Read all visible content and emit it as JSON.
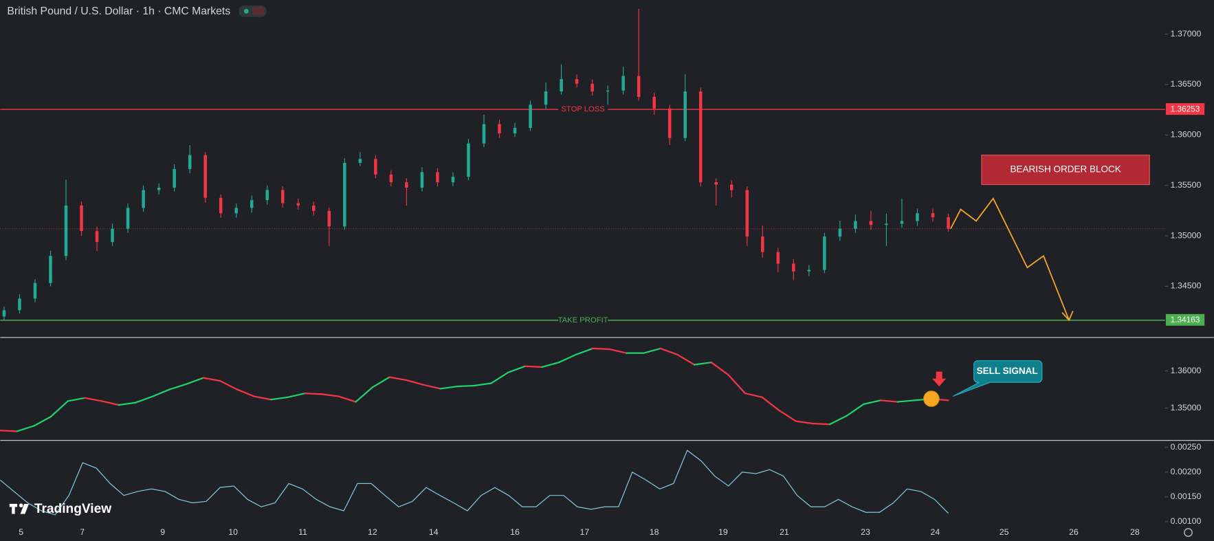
{
  "header": {
    "title": "British Pound / U.S. Dollar · 1h · CMC Markets"
  },
  "branding": "TradingView",
  "chart_data": [
    {
      "type": "candlestick",
      "x_labels": [
        "5",
        "7",
        "9",
        "10",
        "11",
        "12",
        "14",
        "16",
        "17",
        "18",
        "19",
        "21",
        "23",
        "24",
        "25",
        "26",
        "28"
      ],
      "open": [
        1.342,
        1.34262,
        1.34378,
        1.34532,
        1.34801,
        1.35301,
        1.35047,
        1.34939,
        1.3507,
        1.35277,
        1.35454,
        1.35477,
        1.35662,
        1.358,
        1.35377,
        1.35224,
        1.35277,
        1.35354,
        1.35454,
        1.35324,
        1.35301,
        1.35247,
        1.35093,
        1.35723,
        1.35762,
        1.35608,
        1.35531,
        1.35477,
        1.35631,
        1.35531,
        1.35585,
        1.35916,
        1.36108,
        1.36016,
        1.3607,
        1.363,
        1.36431,
        1.36554,
        1.36508,
        1.36431,
        1.3644,
        1.36585,
        1.36377,
        1.36262,
        1.3597,
        1.36431,
        1.35531,
        1.35508,
        1.35454,
        1.34993,
        1.34839,
        1.34724,
        1.34647,
        1.34662,
        1.34993,
        1.3507,
        1.35147,
        1.35108,
        1.3512,
        1.35147,
        1.35224,
        1.35185
      ],
      "high": [
        1.343,
        1.3442,
        1.3457,
        1.3485,
        1.3556,
        1.3534,
        1.3509,
        1.3512,
        1.3532,
        1.355,
        1.3552,
        1.3571,
        1.359,
        1.3583,
        1.3541,
        1.3532,
        1.354,
        1.355,
        1.3549,
        1.3537,
        1.3534,
        1.3528,
        1.3577,
        1.3583,
        1.358,
        1.3565,
        1.3557,
        1.3568,
        1.3567,
        1.3563,
        1.3596,
        1.362,
        1.3615,
        1.3612,
        1.3634,
        1.3652,
        1.367,
        1.366,
        1.3655,
        1.3649,
        1.3668,
        1.3725,
        1.3642,
        1.363,
        1.366,
        1.3647,
        1.3557,
        1.3555,
        1.3549,
        1.351,
        1.3488,
        1.3477,
        1.3471,
        1.3503,
        1.3515,
        1.3521,
        1.3525,
        1.3522,
        1.3537,
        1.3527,
        1.3527,
        1.3522
      ],
      "low": [
        1.3416,
        1.3423,
        1.3434,
        1.345,
        1.3476,
        1.35,
        1.3485,
        1.349,
        1.3503,
        1.3524,
        1.3541,
        1.3544,
        1.3562,
        1.3533,
        1.3518,
        1.3518,
        1.3523,
        1.3531,
        1.3528,
        1.3526,
        1.352,
        1.349,
        1.3506,
        1.3569,
        1.3557,
        1.3549,
        1.353,
        1.3544,
        1.3549,
        1.3549,
        1.3555,
        1.3588,
        1.3597,
        1.3598,
        1.3604,
        1.3626,
        1.364,
        1.3647,
        1.3639,
        1.363,
        1.364,
        1.3634,
        1.362,
        1.359,
        1.3594,
        1.3549,
        1.353,
        1.3538,
        1.349,
        1.3478,
        1.3464,
        1.3456,
        1.346,
        1.3463,
        1.3495,
        1.3503,
        1.3506,
        1.349,
        1.3508,
        1.351,
        1.3514,
        1.3504
      ],
      "close": [
        1.34262,
        1.34378,
        1.34532,
        1.34801,
        1.35301,
        1.35047,
        1.34939,
        1.3507,
        1.35277,
        1.35454,
        1.35477,
        1.35662,
        1.358,
        1.35377,
        1.35224,
        1.35277,
        1.35354,
        1.35454,
        1.35324,
        1.35301,
        1.35247,
        1.35093,
        1.35723,
        1.35762,
        1.35608,
        1.35531,
        1.35477,
        1.35631,
        1.35531,
        1.35585,
        1.35916,
        1.36108,
        1.36016,
        1.3607,
        1.363,
        1.36431,
        1.36554,
        1.36508,
        1.36431,
        1.3644,
        1.36585,
        1.36377,
        1.36262,
        1.3597,
        1.36431,
        1.35531,
        1.35508,
        1.35454,
        1.34993,
        1.34839,
        1.34724,
        1.34647,
        1.34662,
        1.34993,
        1.3507,
        1.35147,
        1.35108,
        1.3512,
        1.35147,
        1.35224,
        1.35185,
        1.3507
      ],
      "up_color": "#22ab94",
      "down_color": "#f23645",
      "ylim": [
        1.34,
        1.37338
      ],
      "yticks": [
        {
          "value": 1.345,
          "label": "1.34500"
        },
        {
          "value": 1.35,
          "label": "1.35000"
        },
        {
          "value": 1.355,
          "label": "1.35500"
        },
        {
          "value": 1.36,
          "label": "1.36000"
        },
        {
          "value": 1.365,
          "label": "1.36500"
        },
        {
          "value": 1.37,
          "label": "1.37000"
        }
      ],
      "levels": [
        {
          "name": "STOP LOSS",
          "value": 1.36253,
          "color": "#f23645"
        },
        {
          "name": "TAKE PROFIT",
          "value": 1.34163,
          "color": "#4caf50"
        }
      ],
      "zone": {
        "label": "BEARISH ORDER BLOCK",
        "top": 1.358,
        "bottom": 1.35508,
        "color": "#b22833"
      },
      "projection": {
        "values": [
          1.3507,
          1.35262,
          1.35147,
          1.3537,
          1.34685,
          1.34801,
          1.34163
        ],
        "color": "#f5a623"
      }
    },
    {
      "type": "line",
      "values": [
        1.34396,
        1.34375,
        1.34521,
        1.34771,
        1.35188,
        1.35271,
        1.35188,
        1.35083,
        1.35146,
        1.35313,
        1.355,
        1.35646,
        1.35813,
        1.35729,
        1.355,
        1.35313,
        1.35229,
        1.35292,
        1.35396,
        1.35375,
        1.35313,
        1.35167,
        1.35563,
        1.35833,
        1.3575,
        1.35625,
        1.35521,
        1.35583,
        1.35604,
        1.35667,
        1.35958,
        1.36125,
        1.36104,
        1.36229,
        1.36438,
        1.36604,
        1.36583,
        1.36479,
        1.36479,
        1.36604,
        1.36438,
        1.36167,
        1.36229,
        1.35896,
        1.35396,
        1.35292,
        1.34938,
        1.34646,
        1.34583,
        1.34563,
        1.34792,
        1.35104,
        1.35208,
        1.35167,
        1.35208,
        1.3525,
        1.35208
      ],
      "up_color": "#1fd26a",
      "down_color": "#f23645",
      "ylim": [
        1.3415,
        1.3688
      ],
      "yticks": [
        {
          "value": 1.35,
          "label": "1.35000"
        },
        {
          "value": 1.36,
          "label": "1.36000"
        }
      ],
      "signal": {
        "label": "SELL SIGNAL"
      }
    },
    {
      "type": "line",
      "values": [
        0.00184,
        0.00161,
        0.00138,
        0.00122,
        0.00114,
        0.00153,
        0.00219,
        0.00208,
        0.00177,
        0.00153,
        0.00161,
        0.00166,
        0.00161,
        0.00145,
        0.00138,
        0.00141,
        0.00169,
        0.00172,
        0.00145,
        0.0013,
        0.00138,
        0.00177,
        0.00166,
        0.00145,
        0.0013,
        0.00122,
        0.00177,
        0.00177,
        0.00153,
        0.0013,
        0.00141,
        0.00169,
        0.00153,
        0.00138,
        0.00122,
        0.00153,
        0.00169,
        0.00153,
        0.0013,
        0.0013,
        0.00153,
        0.00153,
        0.0013,
        0.00125,
        0.0013,
        0.0013,
        0.002,
        0.00184,
        0.00166,
        0.00177,
        0.00244,
        0.00223,
        0.00192,
        0.00172,
        0.002,
        0.00197,
        0.00205,
        0.00192,
        0.00153,
        0.0013,
        0.0013,
        0.00145,
        0.0013,
        0.00119,
        0.00119,
        0.00138,
        0.00166,
        0.00161,
        0.00145,
        0.00117
      ],
      "color": "#7ec8d8",
      "ylim": [
        0.00061,
        0.002625
      ],
      "yticks": [
        {
          "value": 0.001,
          "label": "0.00100"
        },
        {
          "value": 0.0015,
          "label": "0.00150"
        },
        {
          "value": 0.002,
          "label": "0.00200"
        },
        {
          "value": 0.0025,
          "label": "0.00250"
        }
      ]
    }
  ]
}
